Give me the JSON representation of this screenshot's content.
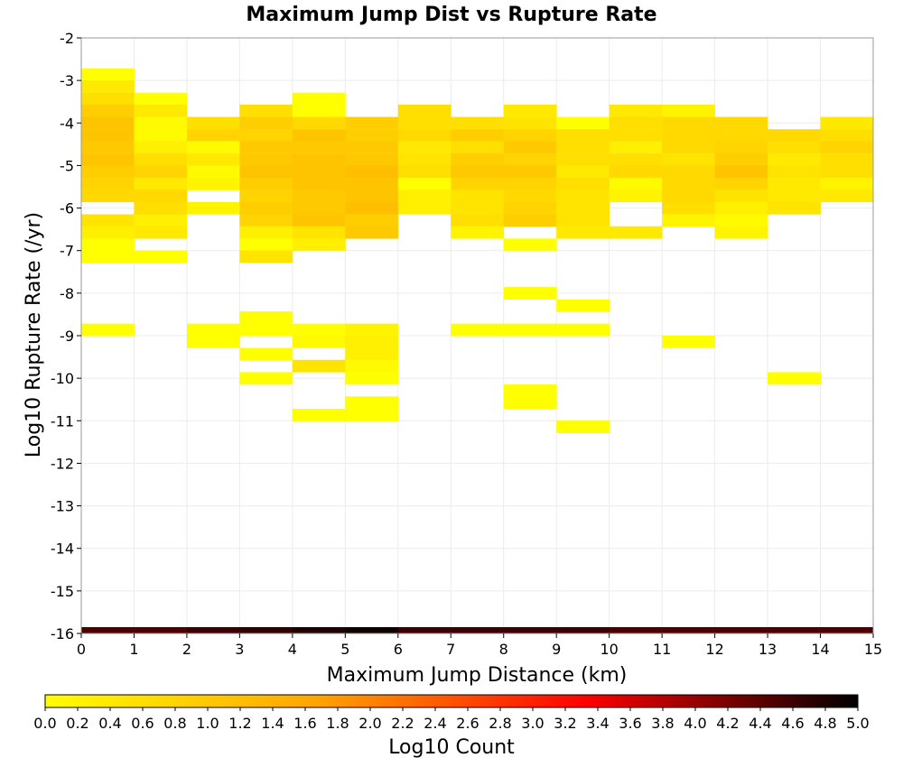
{
  "chart_data": {
    "type": "heatmap",
    "title": "Maximum Jump Dist vs Rupture Rate",
    "xlabel": "Maximum Jump Distance (km)",
    "ylabel": "Log10 Rupture Rate (/yr)",
    "xlim": [
      0,
      15
    ],
    "ylim": [
      -16,
      -2
    ],
    "x_ticks": [
      "0",
      "1",
      "2",
      "3",
      "4",
      "5",
      "6",
      "7",
      "8",
      "9",
      "10",
      "11",
      "12",
      "13",
      "14",
      "15"
    ],
    "y_ticks": [
      "-2",
      "-3",
      "-4",
      "-5",
      "-6",
      "-7",
      "-8",
      "-9",
      "-10",
      "-11",
      "-12",
      "-13",
      "-14",
      "-15",
      "-16"
    ],
    "grid": true,
    "x_bin_width_km": 1,
    "y_bin_height_log10": 0.2857,
    "colorbar": {
      "label": "Log10 Count",
      "min": 0.0,
      "max": 5.0,
      "ticks": [
        "0.0",
        "0.2",
        "0.4",
        "0.6",
        "0.8",
        "1.0",
        "1.2",
        "1.4",
        "1.6",
        "1.8",
        "2.0",
        "2.2",
        "2.4",
        "2.6",
        "2.8",
        "3.0",
        "3.2",
        "3.4",
        "3.6",
        "3.8",
        "4.0",
        "4.2",
        "4.4",
        "4.6",
        "4.8",
        "5.0"
      ],
      "colors": [
        "#ffff00",
        "#ffa500",
        "#ff0000",
        "#000000"
      ],
      "placement": "bottom"
    },
    "cells": [
      {
        "x": 0,
        "y": -2.86,
        "v": 0.0
      },
      {
        "x": 0,
        "y": -3.14,
        "v": 0.4
      },
      {
        "x": 0,
        "y": -3.43,
        "v": 0.6
      },
      {
        "x": 0,
        "y": -3.71,
        "v": 0.9
      },
      {
        "x": 0,
        "y": -4.0,
        "v": 1.1
      },
      {
        "x": 0,
        "y": -4.29,
        "v": 1.1
      },
      {
        "x": 0,
        "y": -4.57,
        "v": 1.0
      },
      {
        "x": 0,
        "y": -4.86,
        "v": 1.1
      },
      {
        "x": 0,
        "y": -5.14,
        "v": 0.9
      },
      {
        "x": 0,
        "y": -5.43,
        "v": 0.8
      },
      {
        "x": 0,
        "y": -5.71,
        "v": 0.7
      },
      {
        "x": 0,
        "y": -6.29,
        "v": 0.5
      },
      {
        "x": 0,
        "y": -6.57,
        "v": 0.3
      },
      {
        "x": 0,
        "y": -6.86,
        "v": 0.0
      },
      {
        "x": 0,
        "y": -7.14,
        "v": 0.0
      },
      {
        "x": 0,
        "y": -8.86,
        "v": 0.0
      },
      {
        "x": 1,
        "y": -3.43,
        "v": 0.0
      },
      {
        "x": 1,
        "y": -3.71,
        "v": 0.4
      },
      {
        "x": 1,
        "y": -4.0,
        "v": 0.1
      },
      {
        "x": 1,
        "y": -4.29,
        "v": 0.1
      },
      {
        "x": 1,
        "y": -4.57,
        "v": 0.3
      },
      {
        "x": 1,
        "y": -4.86,
        "v": 0.6
      },
      {
        "x": 1,
        "y": -5.14,
        "v": 0.8
      },
      {
        "x": 1,
        "y": -5.43,
        "v": 0.4
      },
      {
        "x": 1,
        "y": -5.71,
        "v": 0.7
      },
      {
        "x": 1,
        "y": -6.0,
        "v": 0.6
      },
      {
        "x": 1,
        "y": -6.29,
        "v": 0.3
      },
      {
        "x": 1,
        "y": -6.57,
        "v": 0.4
      },
      {
        "x": 1,
        "y": -7.14,
        "v": 0.0
      },
      {
        "x": 2,
        "y": -4.0,
        "v": 0.6
      },
      {
        "x": 2,
        "y": -4.29,
        "v": 0.8
      },
      {
        "x": 2,
        "y": -4.57,
        "v": 0.1
      },
      {
        "x": 2,
        "y": -4.86,
        "v": 0.4
      },
      {
        "x": 2,
        "y": -5.14,
        "v": 0.1
      },
      {
        "x": 2,
        "y": -5.43,
        "v": 0.2
      },
      {
        "x": 2,
        "y": -6.0,
        "v": 0.2
      },
      {
        "x": 2,
        "y": -8.86,
        "v": 0.0
      },
      {
        "x": 2,
        "y": -9.14,
        "v": 0.0
      },
      {
        "x": 3,
        "y": -3.71,
        "v": 0.6
      },
      {
        "x": 3,
        "y": -4.0,
        "v": 0.9
      },
      {
        "x": 3,
        "y": -4.29,
        "v": 0.8
      },
      {
        "x": 3,
        "y": -4.57,
        "v": 1.0
      },
      {
        "x": 3,
        "y": -4.86,
        "v": 1.0
      },
      {
        "x": 3,
        "y": -5.14,
        "v": 1.1
      },
      {
        "x": 3,
        "y": -5.43,
        "v": 0.9
      },
      {
        "x": 3,
        "y": -5.71,
        "v": 0.8
      },
      {
        "x": 3,
        "y": -6.0,
        "v": 0.9
      },
      {
        "x": 3,
        "y": -6.29,
        "v": 0.8
      },
      {
        "x": 3,
        "y": -6.57,
        "v": 0.3
      },
      {
        "x": 3,
        "y": -6.86,
        "v": 0.0
      },
      {
        "x": 3,
        "y": -7.14,
        "v": 0.5
      },
      {
        "x": 3,
        "y": -8.57,
        "v": 0.0
      },
      {
        "x": 3,
        "y": -8.86,
        "v": 0.0
      },
      {
        "x": 3,
        "y": -9.43,
        "v": 0.0
      },
      {
        "x": 3,
        "y": -10.0,
        "v": 0.0
      },
      {
        "x": 4,
        "y": -3.43,
        "v": 0.0
      },
      {
        "x": 4,
        "y": -3.71,
        "v": 0.0
      },
      {
        "x": 4,
        "y": -4.0,
        "v": 0.7
      },
      {
        "x": 4,
        "y": -4.29,
        "v": 1.1
      },
      {
        "x": 4,
        "y": -4.57,
        "v": 1.0
      },
      {
        "x": 4,
        "y": -4.86,
        "v": 1.1
      },
      {
        "x": 4,
        "y": -5.14,
        "v": 1.1
      },
      {
        "x": 4,
        "y": -5.43,
        "v": 1.1
      },
      {
        "x": 4,
        "y": -5.71,
        "v": 1.0
      },
      {
        "x": 4,
        "y": -6.0,
        "v": 1.0
      },
      {
        "x": 4,
        "y": -6.29,
        "v": 1.1
      },
      {
        "x": 4,
        "y": -6.57,
        "v": 0.5
      },
      {
        "x": 4,
        "y": -6.86,
        "v": 0.3
      },
      {
        "x": 4,
        "y": -8.86,
        "v": 0.0
      },
      {
        "x": 4,
        "y": -9.14,
        "v": 0.1
      },
      {
        "x": 4,
        "y": -9.71,
        "v": 0.5
      },
      {
        "x": 4,
        "y": -10.86,
        "v": 0.0
      },
      {
        "x": 5,
        "y": -4.0,
        "v": 0.9
      },
      {
        "x": 5,
        "y": -4.29,
        "v": 0.9
      },
      {
        "x": 5,
        "y": -4.57,
        "v": 1.0
      },
      {
        "x": 5,
        "y": -4.86,
        "v": 1.0
      },
      {
        "x": 5,
        "y": -5.14,
        "v": 1.2
      },
      {
        "x": 5,
        "y": -5.43,
        "v": 1.1
      },
      {
        "x": 5,
        "y": -5.71,
        "v": 1.1
      },
      {
        "x": 5,
        "y": -6.0,
        "v": 1.2
      },
      {
        "x": 5,
        "y": -6.29,
        "v": 0.9
      },
      {
        "x": 5,
        "y": -6.57,
        "v": 1.0
      },
      {
        "x": 5,
        "y": -8.86,
        "v": 0.2
      },
      {
        "x": 5,
        "y": -9.14,
        "v": 0.3
      },
      {
        "x": 5,
        "y": -9.43,
        "v": 0.3
      },
      {
        "x": 5,
        "y": -9.71,
        "v": 0.1
      },
      {
        "x": 5,
        "y": -10.0,
        "v": 0.0
      },
      {
        "x": 5,
        "y": -10.57,
        "v": 0.0
      },
      {
        "x": 5,
        "y": -10.86,
        "v": 0.0
      },
      {
        "x": 6,
        "y": -3.71,
        "v": 0.6
      },
      {
        "x": 6,
        "y": -4.0,
        "v": 0.6
      },
      {
        "x": 6,
        "y": -4.29,
        "v": 0.7
      },
      {
        "x": 6,
        "y": -4.57,
        "v": 0.4
      },
      {
        "x": 6,
        "y": -4.86,
        "v": 0.5
      },
      {
        "x": 6,
        "y": -5.14,
        "v": 0.6
      },
      {
        "x": 6,
        "y": -5.43,
        "v": 0.0
      },
      {
        "x": 6,
        "y": -5.71,
        "v": 0.3
      },
      {
        "x": 6,
        "y": -6.0,
        "v": 0.3
      },
      {
        "x": 7,
        "y": -4.0,
        "v": 0.6
      },
      {
        "x": 7,
        "y": -4.29,
        "v": 0.9
      },
      {
        "x": 7,
        "y": -4.57,
        "v": 0.6
      },
      {
        "x": 7,
        "y": -4.86,
        "v": 0.9
      },
      {
        "x": 7,
        "y": -5.14,
        "v": 1.0
      },
      {
        "x": 7,
        "y": -5.43,
        "v": 0.8
      },
      {
        "x": 7,
        "y": -5.71,
        "v": 0.5
      },
      {
        "x": 7,
        "y": -6.0,
        "v": 0.5
      },
      {
        "x": 7,
        "y": -6.29,
        "v": 0.6
      },
      {
        "x": 7,
        "y": -6.57,
        "v": 0.2
      },
      {
        "x": 7,
        "y": -8.86,
        "v": 0.0
      },
      {
        "x": 8,
        "y": -3.71,
        "v": 0.4
      },
      {
        "x": 8,
        "y": -4.0,
        "v": 0.5
      },
      {
        "x": 8,
        "y": -4.29,
        "v": 0.8
      },
      {
        "x": 8,
        "y": -4.57,
        "v": 1.0
      },
      {
        "x": 8,
        "y": -4.86,
        "v": 0.8
      },
      {
        "x": 8,
        "y": -5.14,
        "v": 1.0
      },
      {
        "x": 8,
        "y": -5.43,
        "v": 0.8
      },
      {
        "x": 8,
        "y": -5.71,
        "v": 0.7
      },
      {
        "x": 8,
        "y": -6.0,
        "v": 0.8
      },
      {
        "x": 8,
        "y": -6.29,
        "v": 0.9
      },
      {
        "x": 8,
        "y": -6.86,
        "v": 0.0
      },
      {
        "x": 8,
        "y": -8.0,
        "v": 0.0
      },
      {
        "x": 8,
        "y": -8.86,
        "v": 0.0
      },
      {
        "x": 8,
        "y": -10.29,
        "v": 0.0
      },
      {
        "x": 8,
        "y": -10.57,
        "v": 0.0
      },
      {
        "x": 9,
        "y": -4.0,
        "v": 0.0
      },
      {
        "x": 9,
        "y": -4.29,
        "v": 0.6
      },
      {
        "x": 9,
        "y": -4.57,
        "v": 0.6
      },
      {
        "x": 9,
        "y": -4.86,
        "v": 0.6
      },
      {
        "x": 9,
        "y": -5.14,
        "v": 0.4
      },
      {
        "x": 9,
        "y": -5.43,
        "v": 0.6
      },
      {
        "x": 9,
        "y": -5.71,
        "v": 0.5
      },
      {
        "x": 9,
        "y": -6.0,
        "v": 0.5
      },
      {
        "x": 9,
        "y": -6.29,
        "v": 0.5
      },
      {
        "x": 9,
        "y": -6.57,
        "v": 0.4
      },
      {
        "x": 9,
        "y": -8.29,
        "v": 0.0
      },
      {
        "x": 9,
        "y": -8.86,
        "v": 0.0
      },
      {
        "x": 9,
        "y": -11.14,
        "v": 0.0
      },
      {
        "x": 10,
        "y": -3.71,
        "v": 0.4
      },
      {
        "x": 10,
        "y": -4.0,
        "v": 0.6
      },
      {
        "x": 10,
        "y": -4.29,
        "v": 0.6
      },
      {
        "x": 10,
        "y": -4.57,
        "v": 0.3
      },
      {
        "x": 10,
        "y": -4.86,
        "v": 0.6
      },
      {
        "x": 10,
        "y": -5.14,
        "v": 0.7
      },
      {
        "x": 10,
        "y": -5.43,
        "v": 0.1
      },
      {
        "x": 10,
        "y": -5.71,
        "v": 0.2
      },
      {
        "x": 10,
        "y": -6.57,
        "v": 0.4
      },
      {
        "x": 11,
        "y": -3.71,
        "v": 0.2
      },
      {
        "x": 11,
        "y": -4.0,
        "v": 0.7
      },
      {
        "x": 11,
        "y": -4.29,
        "v": 0.7
      },
      {
        "x": 11,
        "y": -4.57,
        "v": 0.7
      },
      {
        "x": 11,
        "y": -4.86,
        "v": 0.5
      },
      {
        "x": 11,
        "y": -5.14,
        "v": 0.7
      },
      {
        "x": 11,
        "y": -5.43,
        "v": 0.7
      },
      {
        "x": 11,
        "y": -5.71,
        "v": 0.7
      },
      {
        "x": 11,
        "y": -6.0,
        "v": 0.6
      },
      {
        "x": 11,
        "y": -6.29,
        "v": 0.2
      },
      {
        "x": 11,
        "y": -9.14,
        "v": 0.0
      },
      {
        "x": 12,
        "y": -4.0,
        "v": 0.7
      },
      {
        "x": 12,
        "y": -4.29,
        "v": 0.7
      },
      {
        "x": 12,
        "y": -4.57,
        "v": 0.8
      },
      {
        "x": 12,
        "y": -4.86,
        "v": 0.9
      },
      {
        "x": 12,
        "y": -5.14,
        "v": 1.1
      },
      {
        "x": 12,
        "y": -5.43,
        "v": 0.8
      },
      {
        "x": 12,
        "y": -5.71,
        "v": 0.5
      },
      {
        "x": 12,
        "y": -6.0,
        "v": 0.3
      },
      {
        "x": 12,
        "y": -6.29,
        "v": 0.1
      },
      {
        "x": 12,
        "y": -6.57,
        "v": 0.2
      },
      {
        "x": 13,
        "y": -4.29,
        "v": 0.7
      },
      {
        "x": 13,
        "y": -4.57,
        "v": 0.6
      },
      {
        "x": 13,
        "y": -4.86,
        "v": 0.4
      },
      {
        "x": 13,
        "y": -5.14,
        "v": 0.5
      },
      {
        "x": 13,
        "y": -5.43,
        "v": 0.4
      },
      {
        "x": 13,
        "y": -5.71,
        "v": 0.4
      },
      {
        "x": 13,
        "y": -6.0,
        "v": 0.5
      },
      {
        "x": 13,
        "y": -10.0,
        "v": 0.0
      },
      {
        "x": 14,
        "y": -4.0,
        "v": 0.4
      },
      {
        "x": 14,
        "y": -4.29,
        "v": 0.6
      },
      {
        "x": 14,
        "y": -4.57,
        "v": 0.8
      },
      {
        "x": 14,
        "y": -4.86,
        "v": 0.6
      },
      {
        "x": 14,
        "y": -5.14,
        "v": 0.6
      },
      {
        "x": 14,
        "y": -5.43,
        "v": 0.2
      },
      {
        "x": 14,
        "y": -5.71,
        "v": 0.4
      }
    ],
    "bottom_row": {
      "y": -16.0,
      "values": [
        4.5,
        4.5,
        4.6,
        4.7,
        4.8,
        4.9,
        4.6,
        4.6,
        4.6,
        4.6,
        4.5,
        4.5,
        4.5,
        4.5,
        4.5
      ]
    }
  }
}
